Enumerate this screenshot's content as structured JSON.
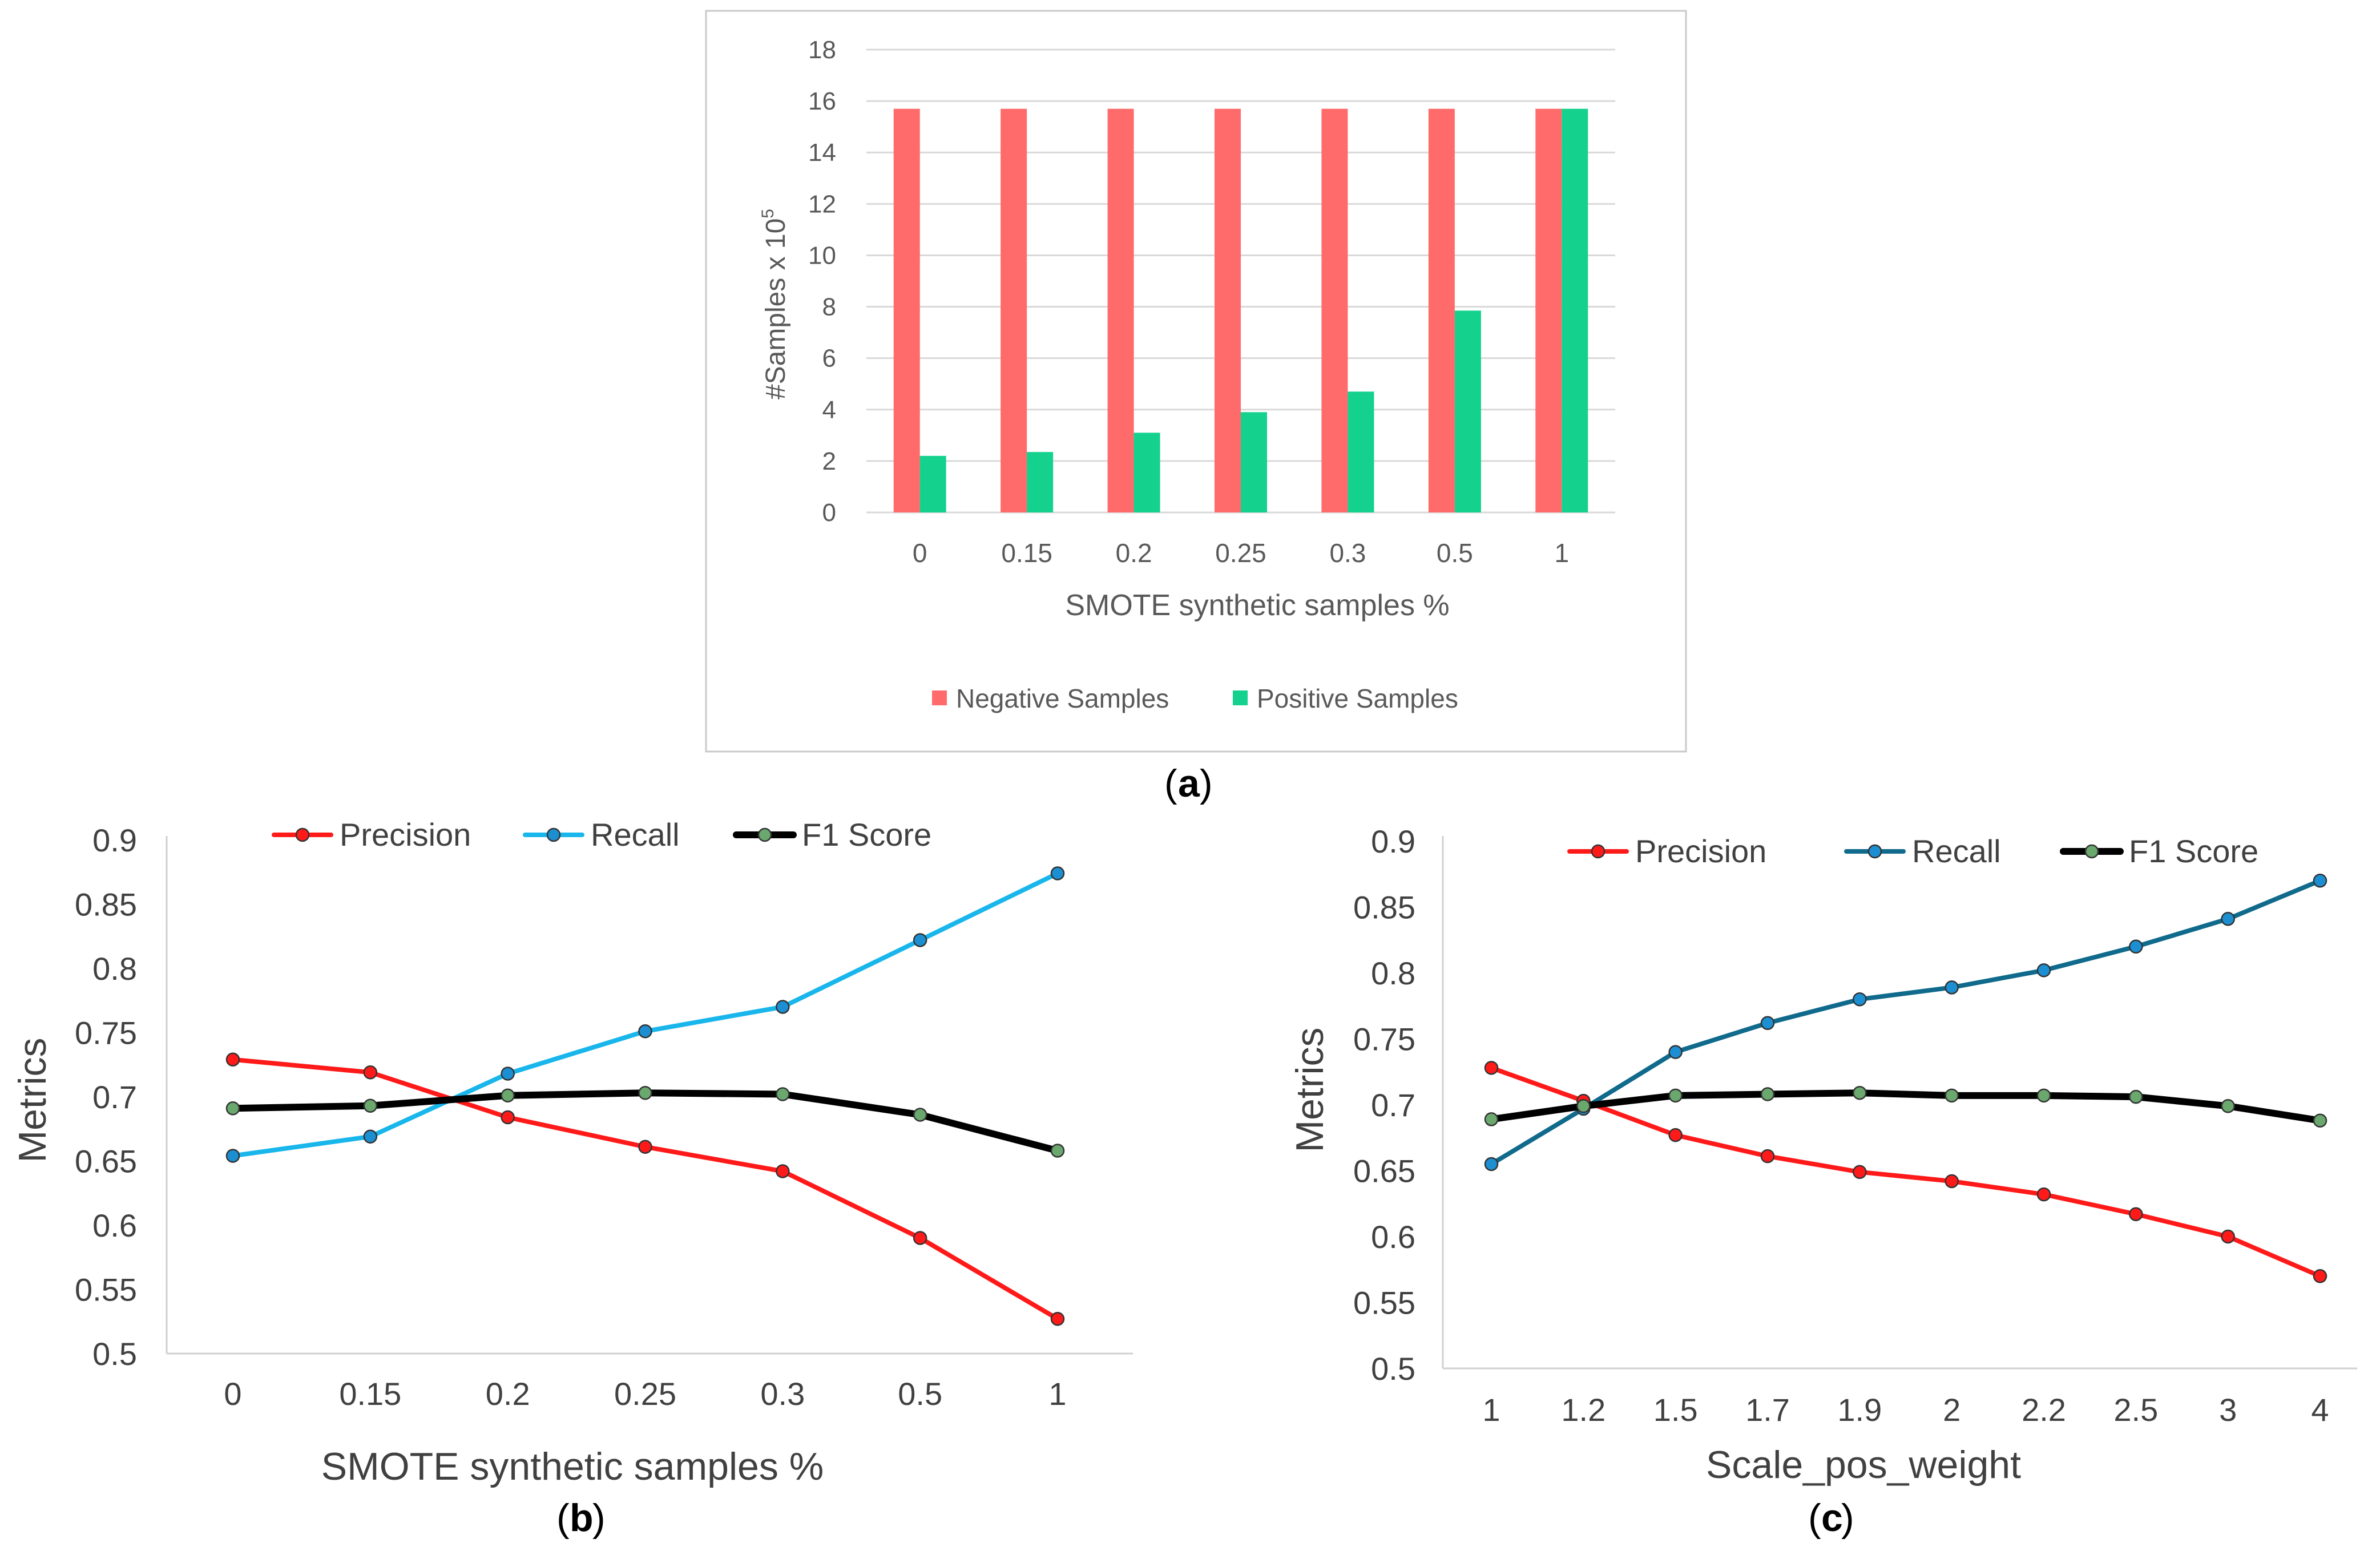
{
  "chart_data": [
    {
      "type": "bar",
      "panel_label": "a",
      "title": "",
      "xlabel": "SMOTE synthetic samples %",
      "ylabel": "#Samples x 10",
      "ylabel_superscript": "5",
      "categories": [
        "0",
        "0.15",
        "0.2",
        "0.25",
        "0.3",
        "0.5",
        "1"
      ],
      "series": [
        {
          "name": "Negative Samples",
          "color": "#ff6b6b",
          "values": [
            15.7,
            15.7,
            15.7,
            15.7,
            15.7,
            15.7,
            15.7
          ]
        },
        {
          "name": "Positive Samples",
          "color": "#14d18e",
          "values": [
            2.2,
            2.35,
            3.1,
            3.9,
            4.7,
            7.85,
            15.7
          ]
        }
      ],
      "ylim": [
        0,
        18
      ],
      "yticks": [
        "0",
        "2",
        "4",
        "6",
        "8",
        "10",
        "12",
        "14",
        "16",
        "18"
      ],
      "grid": true,
      "legend": "bottom"
    },
    {
      "type": "line",
      "panel_label": "b",
      "title": "",
      "xlabel": "SMOTE synthetic samples %",
      "ylabel": "Metrics",
      "categories": [
        "0",
        "0.15",
        "0.2",
        "0.25",
        "0.3",
        "0.5",
        "1"
      ],
      "series": [
        {
          "name": "Precision",
          "color": "#ff1a1a",
          "marker_color": "#ff1a1a",
          "values": [
            0.729,
            0.719,
            0.684,
            0.661,
            0.642,
            0.59,
            0.527
          ]
        },
        {
          "name": "Recall",
          "color": "#19b6ec",
          "marker_color": "#1c8fd2",
          "values": [
            0.654,
            0.669,
            0.718,
            0.751,
            0.77,
            0.822,
            0.874
          ]
        },
        {
          "name": "F1 Score",
          "color": "#000000",
          "marker_color": "#6aa86e",
          "values": [
            0.691,
            0.693,
            0.701,
            0.703,
            0.702,
            0.686,
            0.658
          ]
        }
      ],
      "ylim": [
        0.5,
        0.9
      ],
      "yticks": [
        "0.5",
        "0.55",
        "0.6",
        "0.65",
        "0.7",
        "0.75",
        "0.8",
        "0.85",
        "0.9"
      ],
      "grid": false,
      "legend": "top"
    },
    {
      "type": "line",
      "panel_label": "c",
      "title": "",
      "xlabel": "Scale_pos_weight",
      "ylabel": "Metrics",
      "categories": [
        "1",
        "1.2",
        "1.5",
        "1.7",
        "1.9",
        "2",
        "2.2",
        "2.5",
        "3",
        "4"
      ],
      "series": [
        {
          "name": "Precision",
          "color": "#ff1a1a",
          "marker_color": "#ff1a1a",
          "values": [
            0.728,
            0.703,
            0.677,
            0.661,
            0.649,
            0.642,
            0.632,
            0.617,
            0.6,
            0.57
          ]
        },
        {
          "name": "Recall",
          "color": "#106a8c",
          "marker_color": "#1c8fd2",
          "values": [
            0.655,
            0.697,
            0.74,
            0.762,
            0.78,
            0.789,
            0.802,
            0.82,
            0.841,
            0.87
          ]
        },
        {
          "name": "F1 Score",
          "color": "#000000",
          "marker_color": "#6aa86e",
          "values": [
            0.689,
            0.699,
            0.707,
            0.708,
            0.709,
            0.707,
            0.707,
            0.706,
            0.699,
            0.688
          ]
        }
      ],
      "ylim": [
        0.5,
        0.9
      ],
      "yticks": [
        "0.5",
        "0.55",
        "0.6",
        "0.65",
        "0.7",
        "0.75",
        "0.8",
        "0.85",
        "0.9"
      ],
      "grid": false,
      "legend": "top"
    }
  ]
}
